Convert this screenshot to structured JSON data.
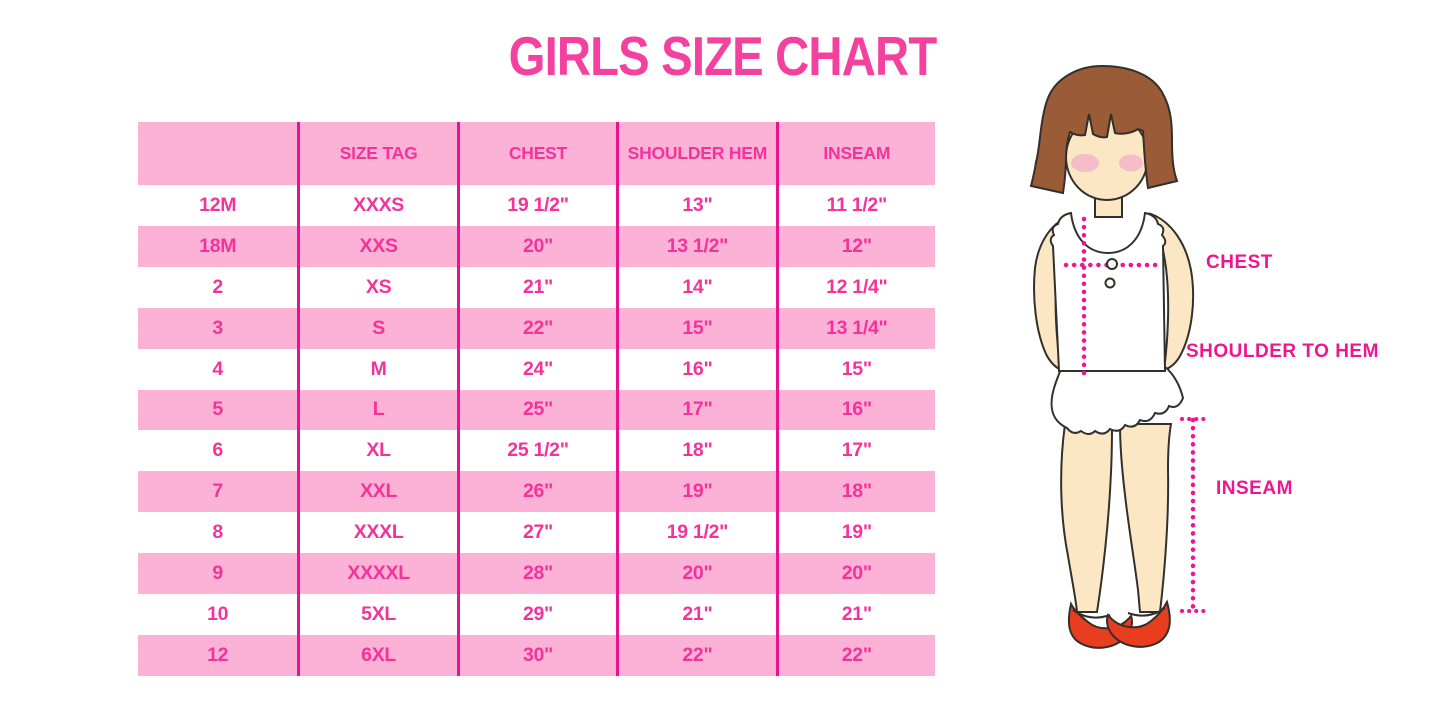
{
  "title": "GIRLS SIZE CHART",
  "chart_data": {
    "type": "table",
    "columns": [
      "",
      "SIZE TAG",
      "CHEST",
      "SHOULDER HEM",
      "INSEAM"
    ],
    "rows": [
      [
        "12M",
        "XXXS",
        "19 1/2\"",
        "13\"",
        "11 1/2\""
      ],
      [
        "18M",
        "XXS",
        "20\"",
        "13 1/2\"",
        "12\""
      ],
      [
        "2",
        "XS",
        "21\"",
        "14\"",
        "12 1/4\""
      ],
      [
        "3",
        "S",
        "22\"",
        "15\"",
        "13 1/4\""
      ],
      [
        "4",
        "M",
        "24\"",
        "16\"",
        "15\""
      ],
      [
        "5",
        "L",
        "25\"",
        "17\"",
        "16\""
      ],
      [
        "6",
        "XL",
        "25 1/2\"",
        "18\"",
        "17\""
      ],
      [
        "7",
        "XXL",
        "26\"",
        "19\"",
        "18\""
      ],
      [
        "8",
        "XXXL",
        "27\"",
        "19 1/2\"",
        "19\""
      ],
      [
        "9",
        "XXXXL",
        "28\"",
        "20\"",
        "20\""
      ],
      [
        "10",
        "5XL",
        "29\"",
        "21\"",
        "21\""
      ],
      [
        "12",
        "6XL",
        "30\"",
        "22\"",
        "22\""
      ]
    ],
    "row_stripe_pattern": "header pink, then alternating white/pink starting white",
    "legend_position": "none",
    "grid": "vertical magenta dividers only"
  },
  "diagram_labels": {
    "chest": "CHEST",
    "shoulder_to_hem": "SHOULDER TO HEM",
    "inseam": "INSEAM"
  },
  "colors": {
    "title_pink": "#F4409F",
    "table_text_pink": "#F3339A",
    "stripe_pink": "#FCB1D7",
    "divider_magenta": "#E5138F",
    "label_magenta": "#EE1690",
    "dotted_line_magenta": "#ED1690",
    "hair_brown": "#9A5C36",
    "skin": "#FBE7C4",
    "blush_pink": "#F6BCCA",
    "shoe_red": "#E83D1E",
    "outline_dark": "#332f2c"
  }
}
